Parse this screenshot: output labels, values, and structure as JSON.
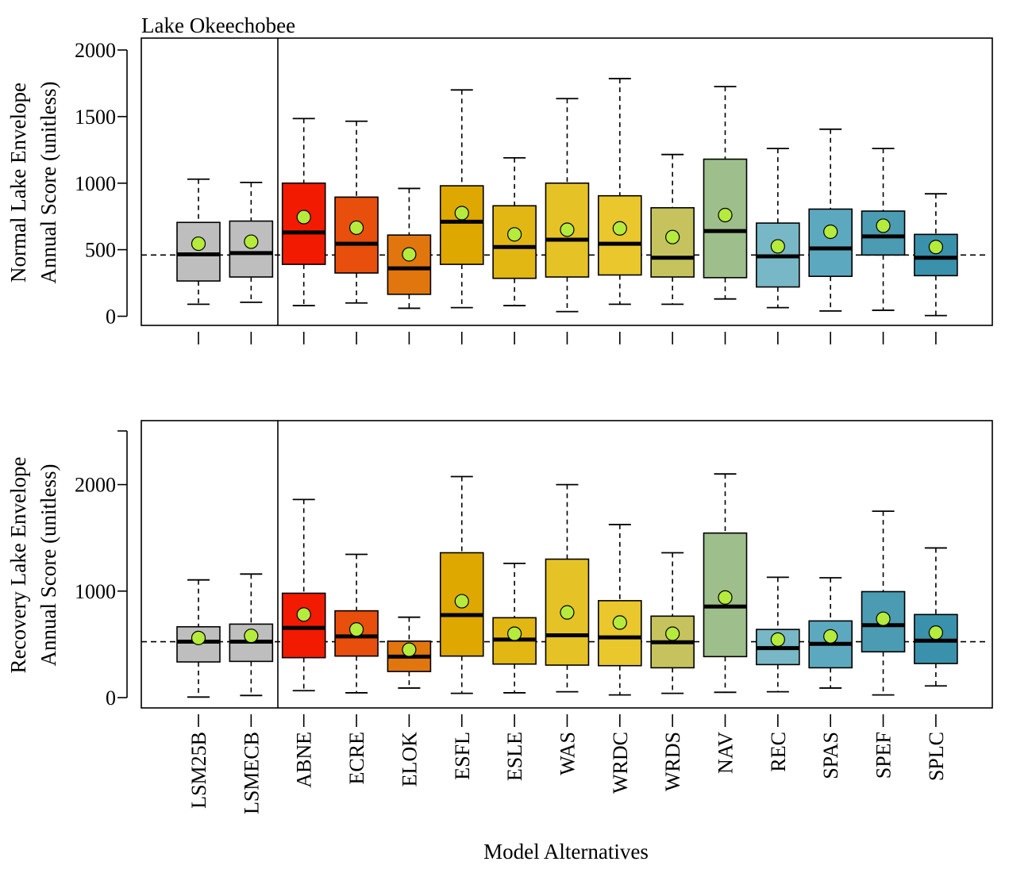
{
  "chart_data": [
    {
      "type": "box",
      "title": "Lake Okeechobee",
      "ylabel_lines": [
        "Normal Lake Envelope",
        "Annual Score (unitless)"
      ],
      "ylim": [
        0,
        2000
      ],
      "yticks": [
        "0",
        "500",
        "1000",
        "1500",
        "2000"
      ],
      "reference_line": 460,
      "categories": [
        "LSM25B",
        "LSMECB",
        "ABNE",
        "ECRE",
        "ELOK",
        "ESFL",
        "ESLE",
        "WAS",
        "WRDC",
        "WRDS",
        "NAV",
        "REC",
        "SPAS",
        "SPEF",
        "SPLC"
      ],
      "boxes": [
        {
          "min": 90,
          "q1": 265,
          "median": 465,
          "q3": 705,
          "max": 1030,
          "mean": 545
        },
        {
          "min": 105,
          "q1": 295,
          "median": 475,
          "q3": 715,
          "max": 1005,
          "mean": 560
        },
        {
          "min": 80,
          "q1": 390,
          "median": 630,
          "q3": 1000,
          "max": 1485,
          "mean": 745
        },
        {
          "min": 100,
          "q1": 325,
          "median": 545,
          "q3": 895,
          "max": 1465,
          "mean": 665
        },
        {
          "min": 60,
          "q1": 165,
          "median": 360,
          "q3": 610,
          "max": 960,
          "mean": 465
        },
        {
          "min": 65,
          "q1": 390,
          "median": 710,
          "q3": 980,
          "max": 1700,
          "mean": 775
        },
        {
          "min": 80,
          "q1": 285,
          "median": 520,
          "q3": 830,
          "max": 1190,
          "mean": 615
        },
        {
          "min": 35,
          "q1": 295,
          "median": 575,
          "q3": 1000,
          "max": 1635,
          "mean": 650
        },
        {
          "min": 90,
          "q1": 310,
          "median": 545,
          "q3": 905,
          "max": 1785,
          "mean": 660
        },
        {
          "min": 90,
          "q1": 295,
          "median": 440,
          "q3": 815,
          "max": 1215,
          "mean": 595
        },
        {
          "min": 130,
          "q1": 290,
          "median": 640,
          "q3": 1180,
          "max": 1725,
          "mean": 760
        },
        {
          "min": 65,
          "q1": 220,
          "median": 450,
          "q3": 700,
          "max": 1260,
          "mean": 525
        },
        {
          "min": 40,
          "q1": 300,
          "median": 510,
          "q3": 805,
          "max": 1405,
          "mean": 635
        },
        {
          "min": 45,
          "q1": 460,
          "median": 600,
          "q3": 790,
          "max": 1260,
          "mean": 680
        },
        {
          "min": 5,
          "q1": 305,
          "median": 440,
          "q3": 615,
          "max": 920,
          "mean": 520
        }
      ]
    },
    {
      "type": "box",
      "title": "",
      "ylabel_lines": [
        "Recovery Lake Envelope",
        "Annual Score (unitless)"
      ],
      "ylim": [
        0,
        2560
      ],
      "yticks": [
        "0",
        "1000",
        "2000"
      ],
      "reference_line": 525,
      "xlabel": "Model Alternatives",
      "categories": [
        "LSM25B",
        "LSMECB",
        "ABNE",
        "ECRE",
        "ELOK",
        "ESFL",
        "ESLE",
        "WAS",
        "WRDC",
        "WRDS",
        "NAV",
        "REC",
        "SPAS",
        "SPEF",
        "SPLC"
      ],
      "boxes": [
        {
          "min": 5,
          "q1": 335,
          "median": 525,
          "q3": 665,
          "max": 1105,
          "mean": 560
        },
        {
          "min": 20,
          "q1": 340,
          "median": 525,
          "q3": 690,
          "max": 1160,
          "mean": 580
        },
        {
          "min": 65,
          "q1": 375,
          "median": 655,
          "q3": 980,
          "max": 1860,
          "mean": 780
        },
        {
          "min": 45,
          "q1": 390,
          "median": 575,
          "q3": 815,
          "max": 1345,
          "mean": 640
        },
        {
          "min": 90,
          "q1": 245,
          "median": 385,
          "q3": 530,
          "max": 755,
          "mean": 450
        },
        {
          "min": 40,
          "q1": 390,
          "median": 775,
          "q3": 1360,
          "max": 2075,
          "mean": 905
        },
        {
          "min": 45,
          "q1": 315,
          "median": 545,
          "q3": 750,
          "max": 1260,
          "mean": 600
        },
        {
          "min": 55,
          "q1": 305,
          "median": 585,
          "q3": 1300,
          "max": 2000,
          "mean": 800
        },
        {
          "min": 25,
          "q1": 300,
          "median": 565,
          "q3": 910,
          "max": 1625,
          "mean": 705
        },
        {
          "min": 40,
          "q1": 280,
          "median": 520,
          "q3": 765,
          "max": 1360,
          "mean": 600
        },
        {
          "min": 50,
          "q1": 385,
          "median": 855,
          "q3": 1545,
          "max": 2100,
          "mean": 940
        },
        {
          "min": 55,
          "q1": 310,
          "median": 465,
          "q3": 640,
          "max": 1130,
          "mean": 545
        },
        {
          "min": 90,
          "q1": 280,
          "median": 505,
          "q3": 720,
          "max": 1125,
          "mean": 575
        },
        {
          "min": 25,
          "q1": 430,
          "median": 680,
          "q3": 995,
          "max": 1750,
          "mean": 740
        },
        {
          "min": 110,
          "q1": 320,
          "median": 535,
          "q3": 780,
          "max": 1405,
          "mean": 610
        }
      ]
    }
  ],
  "colors": {
    "boxes": [
      "#BEBEBE",
      "#BEBEBE",
      "#F21A00",
      "#E84E0C",
      "#E2760E",
      "#DFA800",
      "#E2B714",
      "#E5C327",
      "#E9C72D",
      "#C6C35E",
      "#9EBE8C",
      "#78B7C5",
      "#5CA8BF",
      "#4B9CB2",
      "#3A91AC"
    ],
    "mean_dot": "#B5EB3C",
    "stroke": "#000000"
  }
}
